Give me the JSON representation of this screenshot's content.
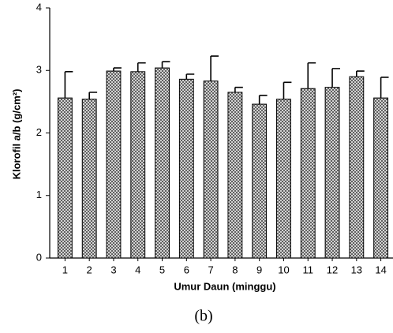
{
  "chart_data": {
    "type": "bar",
    "x_label": "Umur Daun (minggu)",
    "y_label": "Klorofil a/b (g/cm²)",
    "caption": "(b)",
    "categories": [
      "1",
      "2",
      "3",
      "4",
      "5",
      "6",
      "7",
      "8",
      "9",
      "10",
      "11",
      "12",
      "13",
      "14"
    ],
    "values": [
      2.56,
      2.54,
      2.99,
      2.98,
      3.04,
      2.86,
      2.83,
      2.65,
      2.46,
      2.54,
      2.71,
      2.73,
      2.9,
      2.56
    ],
    "errors": [
      0.42,
      0.11,
      0.05,
      0.14,
      0.1,
      0.08,
      0.4,
      0.08,
      0.14,
      0.27,
      0.41,
      0.3,
      0.09,
      0.33
    ],
    "color": "#808080",
    "ylim": [
      0,
      4
    ],
    "yticks": [
      0,
      1,
      2,
      3,
      4
    ],
    "grid": false
  }
}
